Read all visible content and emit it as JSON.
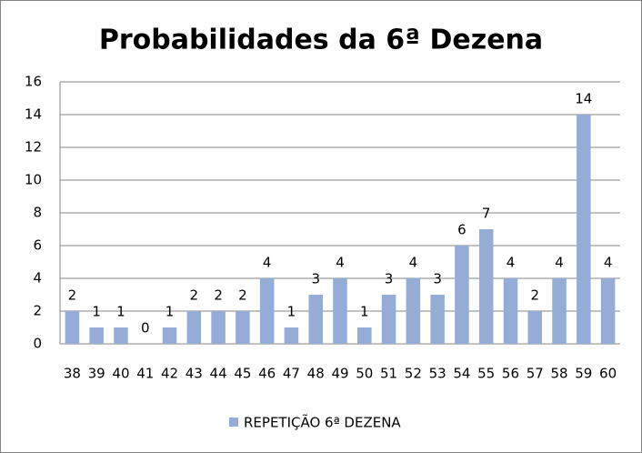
{
  "chart_data": {
    "type": "bar",
    "title": "Probabilidades da 6ª Dezena",
    "categories": [
      "38",
      "39",
      "40",
      "41",
      "42",
      "43",
      "44",
      "45",
      "46",
      "47",
      "48",
      "49",
      "50",
      "51",
      "52",
      "53",
      "54",
      "55",
      "56",
      "57",
      "58",
      "59",
      "60"
    ],
    "series": [
      {
        "name": "REPETIÇÃO 6ª DEZENA",
        "color": "#94acd6",
        "values": [
          2,
          1,
          1,
          0,
          1,
          2,
          2,
          2,
          4,
          1,
          3,
          4,
          1,
          3,
          4,
          3,
          6,
          7,
          4,
          2,
          4,
          14,
          4
        ]
      }
    ],
    "ylim": [
      0,
      16
    ],
    "yticks": [
      0,
      2,
      4,
      6,
      8,
      10,
      12,
      14,
      16
    ],
    "grid": true,
    "legend": "bottom"
  }
}
